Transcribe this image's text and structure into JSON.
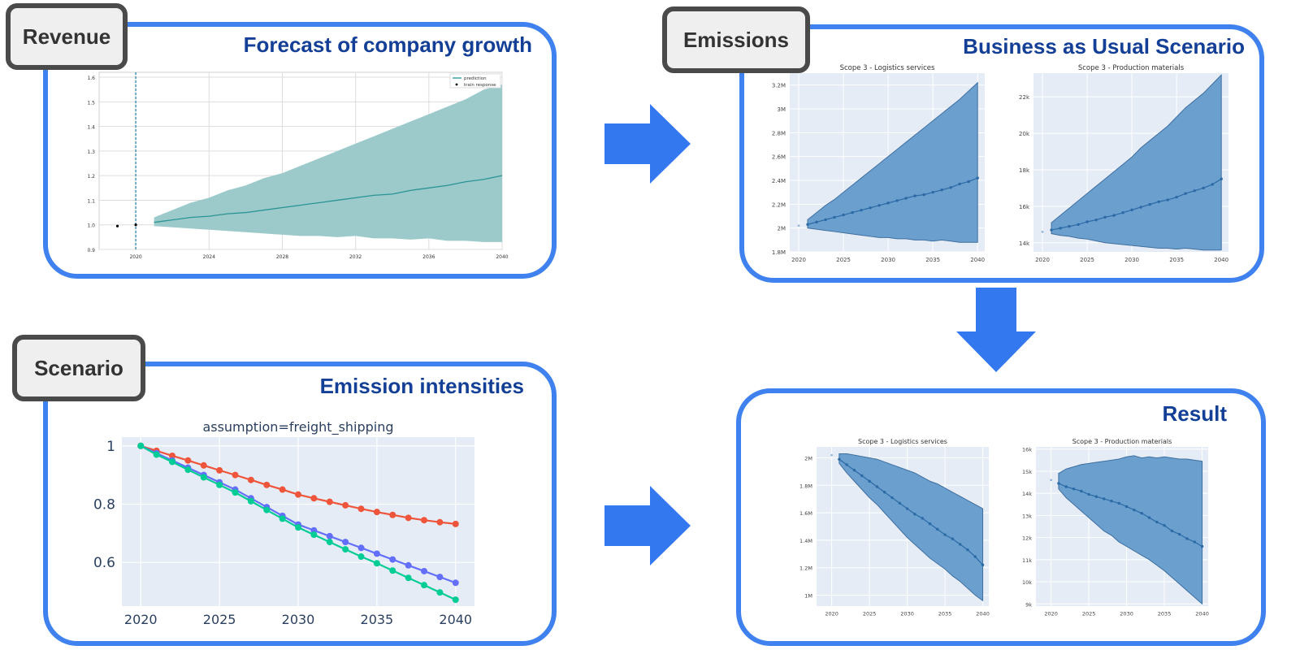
{
  "panels": {
    "revenue": {
      "tag": "Revenue",
      "title": "Forecast of company growth"
    },
    "emissions": {
      "tag": "Emissions",
      "title": "Business as Usual Scenario"
    },
    "scenario": {
      "tag": "Scenario",
      "title": "Emission intensities"
    },
    "result": {
      "title": "Result"
    }
  },
  "colors": {
    "panel_border": "#3f82ef",
    "title": "#143f96",
    "arrow": "#3478f0",
    "band_teal": "#9ccaca",
    "band_blue": "#6a9fce"
  },
  "chart_data": [
    {
      "id": "revenue",
      "type": "area",
      "legend": [
        "prediction",
        "train response"
      ],
      "legend_position": "top-right",
      "xlim": [
        2018,
        2040
      ],
      "ylim": [
        0.9,
        1.62
      ],
      "xticks": [
        "2020",
        "2024",
        "2028",
        "2032",
        "2036",
        "2040"
      ],
      "yticks": [
        "0.9",
        "1.0",
        "1.1",
        "1.2",
        "1.3",
        "1.4",
        "1.5",
        "1.6"
      ],
      "train_points": [
        [
          2019,
          0.995
        ],
        [
          2020,
          1.0
        ]
      ],
      "vline": 2020,
      "x": [
        2021,
        2022,
        2023,
        2024,
        2025,
        2026,
        2027,
        2028,
        2029,
        2030,
        2031,
        2032,
        2033,
        2034,
        2035,
        2036,
        2037,
        2038,
        2039,
        2040
      ],
      "mean": [
        1.01,
        1.02,
        1.03,
        1.035,
        1.045,
        1.05,
        1.06,
        1.07,
        1.08,
        1.09,
        1.1,
        1.11,
        1.12,
        1.125,
        1.14,
        1.15,
        1.16,
        1.175,
        1.185,
        1.2
      ],
      "upper": [
        1.03,
        1.06,
        1.09,
        1.11,
        1.14,
        1.16,
        1.19,
        1.21,
        1.24,
        1.27,
        1.3,
        1.33,
        1.36,
        1.39,
        1.42,
        1.45,
        1.48,
        1.51,
        1.55,
        1.57
      ],
      "lower": [
        0.995,
        0.99,
        0.985,
        0.98,
        0.975,
        0.97,
        0.965,
        0.96,
        0.955,
        0.955,
        0.95,
        0.955,
        0.945,
        0.945,
        0.94,
        0.945,
        0.935,
        0.935,
        0.93,
        0.93
      ]
    },
    {
      "id": "bau-logistics",
      "type": "area",
      "title": "Scope 3 - Logistics services",
      "xlim": [
        2019,
        2040.8
      ],
      "ylim": [
        1.8,
        3.3
      ],
      "xticks": [
        "2020",
        "2025",
        "2030",
        "2035",
        "2040"
      ],
      "yticks": [
        "1.8M",
        "2M",
        "2.2M",
        "2.4M",
        "2.6M",
        "2.8M",
        "3M",
        "3.2M"
      ],
      "ytick_values": [
        1.8,
        2.0,
        2.2,
        2.4,
        2.6,
        2.8,
        3.0,
        3.2
      ],
      "start_point": [
        2020,
        2.02
      ],
      "x": [
        2021,
        2022,
        2023,
        2024,
        2025,
        2026,
        2027,
        2028,
        2029,
        2030,
        2031,
        2032,
        2033,
        2034,
        2035,
        2036,
        2037,
        2038,
        2039,
        2040
      ],
      "mean": [
        2.03,
        2.05,
        2.07,
        2.09,
        2.11,
        2.13,
        2.15,
        2.17,
        2.19,
        2.21,
        2.23,
        2.25,
        2.27,
        2.28,
        2.3,
        2.32,
        2.34,
        2.37,
        2.39,
        2.42
      ],
      "upper": [
        2.07,
        2.13,
        2.19,
        2.24,
        2.3,
        2.36,
        2.42,
        2.48,
        2.54,
        2.6,
        2.66,
        2.72,
        2.78,
        2.84,
        2.9,
        2.96,
        3.02,
        3.08,
        3.15,
        3.22
      ],
      "lower": [
        2.0,
        1.99,
        1.98,
        1.97,
        1.96,
        1.95,
        1.94,
        1.93,
        1.92,
        1.92,
        1.91,
        1.91,
        1.9,
        1.9,
        1.89,
        1.9,
        1.89,
        1.88,
        1.88,
        1.88
      ]
    },
    {
      "id": "bau-production",
      "type": "area",
      "title": "Scope 3 - Production materials",
      "xlim": [
        2019,
        2040.8
      ],
      "ylim": [
        13.5,
        23.3
      ],
      "xticks": [
        "2020",
        "2025",
        "2030",
        "2035",
        "2040"
      ],
      "yticks": [
        "14k",
        "16k",
        "18k",
        "20k",
        "22k"
      ],
      "ytick_values": [
        14,
        16,
        18,
        20,
        22
      ],
      "start_point": [
        2020,
        14.6
      ],
      "x": [
        2021,
        2022,
        2023,
        2024,
        2025,
        2026,
        2027,
        2028,
        2029,
        2030,
        2031,
        2032,
        2033,
        2034,
        2035,
        2036,
        2037,
        2038,
        2039,
        2040
      ],
      "mean": [
        14.7,
        14.8,
        14.9,
        15.0,
        15.15,
        15.25,
        15.4,
        15.5,
        15.65,
        15.8,
        15.95,
        16.1,
        16.25,
        16.35,
        16.5,
        16.7,
        16.85,
        17.0,
        17.2,
        17.5
      ],
      "upper": [
        15.1,
        15.5,
        15.9,
        16.3,
        16.7,
        17.1,
        17.5,
        17.9,
        18.3,
        18.7,
        19.2,
        19.6,
        20.0,
        20.4,
        20.9,
        21.4,
        21.8,
        22.2,
        22.7,
        23.2
      ],
      "lower": [
        14.5,
        14.4,
        14.35,
        14.25,
        14.2,
        14.1,
        14.0,
        13.95,
        13.9,
        13.85,
        13.8,
        13.75,
        13.7,
        13.7,
        13.65,
        13.7,
        13.65,
        13.6,
        13.6,
        13.6
      ]
    },
    {
      "id": "intensities",
      "type": "line",
      "title": "assumption=freight_shipping",
      "xlim": [
        2018.8,
        2041.2
      ],
      "ylim": [
        0.45,
        1.03
      ],
      "xticks": [
        "2020",
        "2025",
        "2030",
        "2035",
        "2040"
      ],
      "yticks": [
        "0.6",
        "0.8",
        "1"
      ],
      "ytick_values": [
        0.6,
        0.8,
        1.0
      ],
      "x": [
        2020,
        2021,
        2022,
        2023,
        2024,
        2025,
        2026,
        2027,
        2028,
        2029,
        2030,
        2031,
        2032,
        2033,
        2034,
        2035,
        2036,
        2037,
        2038,
        2039,
        2040
      ],
      "series": [
        {
          "color": "#ef553b",
          "values": [
            1.0,
            0.983,
            0.966,
            0.95,
            0.933,
            0.916,
            0.9,
            0.883,
            0.866,
            0.85,
            0.833,
            0.82,
            0.808,
            0.796,
            0.784,
            0.773,
            0.763,
            0.753,
            0.745,
            0.738,
            0.732
          ]
        },
        {
          "color": "#636efa",
          "values": [
            1.0,
            0.975,
            0.95,
            0.925,
            0.9,
            0.875,
            0.85,
            0.82,
            0.79,
            0.76,
            0.73,
            0.71,
            0.69,
            0.67,
            0.65,
            0.63,
            0.61,
            0.59,
            0.57,
            0.55,
            0.53
          ]
        },
        {
          "color": "#00cc96",
          "values": [
            1.0,
            0.97,
            0.945,
            0.918,
            0.892,
            0.866,
            0.84,
            0.81,
            0.78,
            0.75,
            0.72,
            0.695,
            0.67,
            0.645,
            0.62,
            0.597,
            0.572,
            0.547,
            0.522,
            0.497,
            0.472
          ]
        }
      ]
    },
    {
      "id": "result-logistics",
      "type": "area",
      "title": "Scope 3 - Logistics services",
      "xlim": [
        2018,
        2040.8
      ],
      "ylim": [
        0.92,
        2.08
      ],
      "xticks": [
        "2020",
        "2025",
        "2030",
        "2035",
        "2040"
      ],
      "yticks": [
        "1M",
        "1.2M",
        "1.4M",
        "1.6M",
        "1.8M",
        "2M"
      ],
      "ytick_values": [
        1.0,
        1.2,
        1.4,
        1.6,
        1.8,
        2.0
      ],
      "start_point": [
        2020,
        2.02
      ],
      "x": [
        2021,
        2022,
        2023,
        2024,
        2025,
        2026,
        2027,
        2028,
        2029,
        2030,
        2031,
        2032,
        2033,
        2034,
        2035,
        2036,
        2037,
        2038,
        2039,
        2040
      ],
      "mean": [
        1.99,
        1.95,
        1.91,
        1.87,
        1.83,
        1.79,
        1.75,
        1.71,
        1.67,
        1.63,
        1.59,
        1.56,
        1.52,
        1.48,
        1.44,
        1.41,
        1.37,
        1.33,
        1.28,
        1.22
      ],
      "upper": [
        2.03,
        2.03,
        2.02,
        2.01,
        2.0,
        1.99,
        1.97,
        1.95,
        1.93,
        1.91,
        1.89,
        1.86,
        1.83,
        1.81,
        1.78,
        1.75,
        1.72,
        1.69,
        1.66,
        1.63
      ],
      "lower": [
        1.96,
        1.89,
        1.83,
        1.77,
        1.71,
        1.66,
        1.6,
        1.54,
        1.48,
        1.42,
        1.37,
        1.32,
        1.27,
        1.23,
        1.19,
        1.14,
        1.1,
        1.05,
        1.0,
        0.96
      ]
    },
    {
      "id": "result-production",
      "type": "area",
      "title": "Scope 3 - Production materials",
      "xlim": [
        2018,
        2040.8
      ],
      "ylim": [
        8.9,
        16.1
      ],
      "xticks": [
        "2020",
        "2025",
        "2030",
        "2035",
        "2040"
      ],
      "yticks": [
        "9k",
        "10k",
        "11k",
        "12k",
        "13k",
        "14k",
        "15k",
        "16k"
      ],
      "ytick_values": [
        9,
        10,
        11,
        12,
        13,
        14,
        15,
        16
      ],
      "start_point": [
        2020,
        14.6
      ],
      "x": [
        2021,
        2022,
        2023,
        2024,
        2025,
        2026,
        2027,
        2028,
        2029,
        2030,
        2031,
        2032,
        2033,
        2034,
        2035,
        2036,
        2037,
        2038,
        2039,
        2040
      ],
      "mean": [
        14.45,
        14.3,
        14.2,
        14.1,
        13.95,
        13.85,
        13.75,
        13.65,
        13.55,
        13.4,
        13.25,
        13.1,
        12.9,
        12.7,
        12.55,
        12.3,
        12.15,
        11.95,
        11.8,
        11.6
      ],
      "upper": [
        14.9,
        15.1,
        15.2,
        15.3,
        15.35,
        15.4,
        15.45,
        15.5,
        15.55,
        15.65,
        15.7,
        15.6,
        15.65,
        15.6,
        15.65,
        15.6,
        15.55,
        15.55,
        15.5,
        15.45
      ],
      "lower": [
        14.2,
        13.8,
        13.5,
        13.2,
        12.9,
        12.6,
        12.3,
        12.1,
        11.8,
        11.6,
        11.4,
        11.2,
        11.0,
        10.75,
        10.5,
        10.2,
        9.9,
        9.6,
        9.3,
        9.0
      ]
    }
  ]
}
